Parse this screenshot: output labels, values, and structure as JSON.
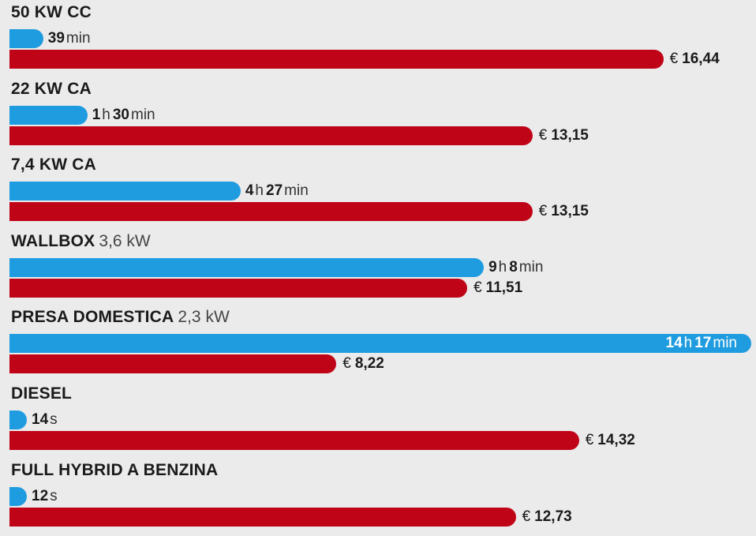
{
  "chart_data": {
    "type": "bar",
    "groups": [
      {
        "title": "50 KW CC",
        "subtitle": "",
        "time": {
          "parts": [
            {
              "n": "39",
              "u": "min"
            }
          ],
          "seconds": 2340
        },
        "cost": {
          "currency": "€",
          "label": "16,44",
          "value": 16.44
        }
      },
      {
        "title": "22 KW CA",
        "subtitle": "",
        "time": {
          "parts": [
            {
              "n": "1",
              "u": "h"
            },
            {
              "n": "30",
              "u": "min"
            }
          ],
          "seconds": 5400
        },
        "cost": {
          "currency": "€",
          "label": "13,15",
          "value": 13.15
        }
      },
      {
        "title": "7,4 KW CA",
        "subtitle": "",
        "time": {
          "parts": [
            {
              "n": "4",
              "u": "h"
            },
            {
              "n": "27",
              "u": "min"
            }
          ],
          "seconds": 16020
        },
        "cost": {
          "currency": "€",
          "label": "13,15",
          "value": 13.15
        }
      },
      {
        "title": "WALLBOX",
        "subtitle": "3,6 kW",
        "time": {
          "parts": [
            {
              "n": "9",
              "u": "h"
            },
            {
              "n": "8",
              "u": "min"
            }
          ],
          "seconds": 32880
        },
        "cost": {
          "currency": "€",
          "label": "11,51",
          "value": 11.51
        }
      },
      {
        "title": "PRESA DOMESTICA",
        "subtitle": "2,3 kW",
        "time": {
          "parts": [
            {
              "n": "14",
              "u": "h"
            },
            {
              "n": "17",
              "u": "min"
            }
          ],
          "seconds": 51420
        },
        "cost": {
          "currency": "€",
          "label": "8,22",
          "value": 8.22
        }
      },
      {
        "title": "DIESEL",
        "subtitle": "",
        "time": {
          "parts": [
            {
              "n": "14",
              "u": "s"
            }
          ],
          "seconds": 14
        },
        "cost": {
          "currency": "€",
          "label": "14,32",
          "value": 14.32
        }
      },
      {
        "title": "FULL HYBRID A BENZINA",
        "subtitle": "",
        "time": {
          "parts": [
            {
              "n": "12",
              "u": "s"
            }
          ],
          "seconds": 12
        },
        "cost": {
          "currency": "€",
          "label": "12,73",
          "value": 12.73
        }
      }
    ],
    "colors": {
      "time": "#1f9ce0",
      "cost": "#c00418",
      "background": "#ebebeb"
    }
  }
}
